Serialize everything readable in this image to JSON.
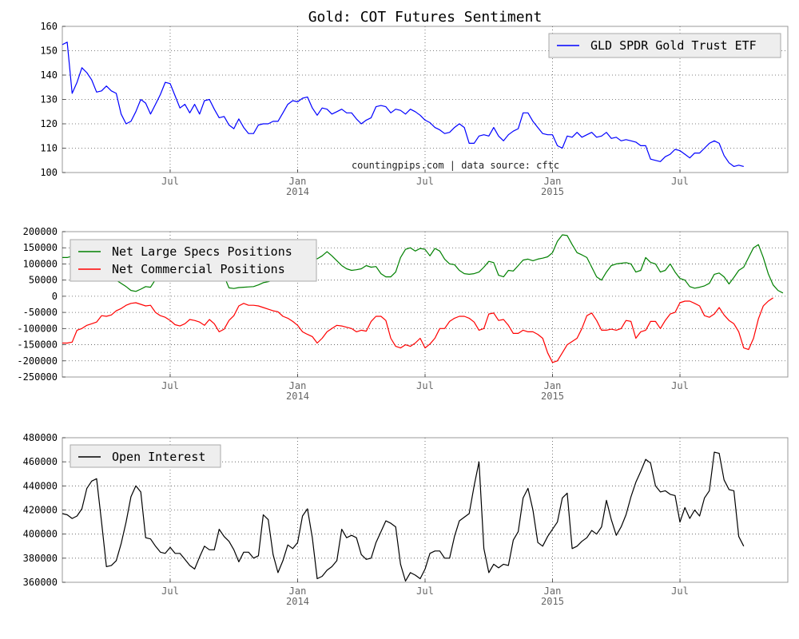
{
  "title": "Gold: COT Futures Sentiment",
  "watermark": "countingpips.com | data source: cftc",
  "colors": {
    "gld": "#0000ff",
    "specs": "#008000",
    "commercial": "#ff0000",
    "open_interest": "#000000",
    "grid": "#555555",
    "legend_bg": "#eeeeee"
  },
  "chart_data": [
    {
      "type": "line",
      "legend_position": "top-right",
      "grid": true,
      "ylim": [
        100,
        160
      ],
      "yticks": [
        100,
        110,
        120,
        130,
        140,
        150,
        160
      ],
      "xticks": [
        {
          "label": "Jul",
          "sub": "",
          "t": 22
        },
        {
          "label": "Jan",
          "sub": "2014",
          "t": 48
        },
        {
          "label": "Jul",
          "sub": "",
          "t": 74
        },
        {
          "label": "Jan",
          "sub": "2015",
          "t": 100
        },
        {
          "label": "Jul",
          "sub": "",
          "t": 126
        }
      ],
      "x_range": [
        0,
        148
      ],
      "series": [
        {
          "name": "GLD SPDR Gold Trust ETF",
          "color_key": "gld",
          "values": [
            152.5,
            153.5,
            132.5,
            137,
            143,
            141,
            138,
            133,
            133.5,
            135.5,
            133.5,
            132.5,
            124,
            120,
            121,
            125,
            130,
            128.5,
            124,
            128,
            132,
            137,
            136.5,
            131.5,
            126.5,
            128,
            124.5,
            128,
            124,
            129.5,
            130,
            126,
            122.5,
            123,
            119.5,
            118,
            122,
            118.5,
            116,
            116,
            119.5,
            120,
            120,
            121,
            121,
            124.5,
            128,
            129.5,
            129,
            130.5,
            131,
            126.5,
            123.5,
            126.5,
            126,
            124,
            125,
            126,
            124.5,
            124.5,
            122,
            120,
            121.5,
            122.5,
            127,
            127.5,
            127,
            124.5,
            126,
            125.5,
            124,
            126,
            125,
            123.5,
            121.5,
            120.5,
            118.5,
            117.5,
            116,
            116.5,
            118.5,
            120,
            118.5,
            112,
            112,
            115,
            115.5,
            115,
            118.5,
            115,
            113,
            115.5,
            117,
            118,
            124.5,
            124.5,
            121,
            118.5,
            116,
            115.5,
            115.5,
            111,
            110,
            115,
            114.5,
            116.5,
            114.5,
            115.5,
            116.5,
            114.5,
            115,
            116.5,
            114,
            114.5,
            113,
            113.5,
            113,
            112.5,
            111,
            111,
            105.5,
            105,
            104.5,
            106.5,
            107.5,
            109.5,
            109,
            107.5,
            106,
            108,
            108,
            110,
            112,
            113,
            112,
            107,
            104,
            102.5,
            103,
            102.5
          ]
        }
      ]
    },
    {
      "type": "line",
      "legend_position": "top-left",
      "grid": true,
      "ylim": [
        -250000,
        200000
      ],
      "yticks": [
        -250000,
        -200000,
        -150000,
        -100000,
        -50000,
        0,
        50000,
        100000,
        150000,
        200000
      ],
      "xticks": [
        {
          "label": "Jul",
          "sub": "",
          "t": 22
        },
        {
          "label": "Jan",
          "sub": "2014",
          "t": 48
        },
        {
          "label": "Jul",
          "sub": "",
          "t": 74
        },
        {
          "label": "Jan",
          "sub": "2015",
          "t": 100
        },
        {
          "label": "Jul",
          "sub": "",
          "t": 126
        }
      ],
      "x_range": [
        0,
        148
      ],
      "series": [
        {
          "name": "Net Large Specs Positions",
          "color_key": "specs",
          "values": [
            120000,
            120000,
            124000,
            105000,
            100000,
            95000,
            92000,
            90000,
            80000,
            75000,
            70000,
            50000,
            40000,
            30000,
            18000,
            15000,
            22000,
            30000,
            28000,
            52000,
            75000,
            80000,
            85000,
            88000,
            90000,
            92000,
            95000,
            96000,
            94000,
            95000,
            92000,
            88000,
            78000,
            62000,
            26000,
            24000,
            27000,
            28000,
            29000,
            30000,
            35000,
            42000,
            45000,
            50000,
            58000,
            70000,
            85000,
            100000,
            112000,
            118000,
            120000,
            118000,
            116000,
            125000,
            138000,
            125000,
            110000,
            95000,
            85000,
            80000,
            82000,
            85000,
            95000,
            90000,
            92000,
            70000,
            60000,
            60000,
            75000,
            120000,
            145000,
            150000,
            140000,
            148000,
            145000,
            125000,
            148000,
            140000,
            115000,
            100000,
            98000,
            80000,
            70000,
            68000,
            70000,
            75000,
            90000,
            108000,
            104000,
            65000,
            60000,
            80000,
            78000,
            95000,
            112000,
            115000,
            110000,
            115000,
            118000,
            122000,
            135000,
            170000,
            190000,
            188000,
            160000,
            135000,
            128000,
            120000,
            90000,
            60000,
            50000,
            75000,
            95000,
            100000,
            102000,
            104000,
            100000,
            75000,
            80000,
            120000,
            105000,
            100000,
            75000,
            80000,
            100000,
            75000,
            55000,
            50000,
            30000,
            25000,
            28000,
            32000,
            40000,
            68000,
            72000,
            60000,
            38000,
            58000,
            80000,
            90000,
            120000,
            150000,
            160000,
            120000,
            70000,
            35000,
            18000,
            10000
          ]
        },
        {
          "name": "Net Commercial Positions",
          "color_key": "commercial",
          "values": [
            -145000,
            -145000,
            -142000,
            -105000,
            -100000,
            -90000,
            -85000,
            -80000,
            -60000,
            -62000,
            -58000,
            -45000,
            -38000,
            -28000,
            -22000,
            -20000,
            -25000,
            -30000,
            -28000,
            -50000,
            -60000,
            -65000,
            -75000,
            -88000,
            -92000,
            -85000,
            -72000,
            -75000,
            -80000,
            -90000,
            -72000,
            -85000,
            -110000,
            -102000,
            -75000,
            -60000,
            -30000,
            -22000,
            -28000,
            -28000,
            -30000,
            -35000,
            -40000,
            -45000,
            -48000,
            -62000,
            -68000,
            -78000,
            -90000,
            -110000,
            -118000,
            -125000,
            -145000,
            -130000,
            -110000,
            -100000,
            -90000,
            -92000,
            -96000,
            -100000,
            -110000,
            -105000,
            -108000,
            -78000,
            -62000,
            -62000,
            -75000,
            -130000,
            -155000,
            -160000,
            -150000,
            -155000,
            -145000,
            -130000,
            -160000,
            -148000,
            -130000,
            -100000,
            -100000,
            -78000,
            -68000,
            -62000,
            -62000,
            -68000,
            -80000,
            -105000,
            -100000,
            -55000,
            -52000,
            -75000,
            -72000,
            -90000,
            -115000,
            -115000,
            -105000,
            -110000,
            -110000,
            -118000,
            -130000,
            -175000,
            -205000,
            -200000,
            -175000,
            -150000,
            -140000,
            -130000,
            -100000,
            -60000,
            -52000,
            -75000,
            -105000,
            -105000,
            -102000,
            -105000,
            -100000,
            -75000,
            -78000,
            -130000,
            -110000,
            -105000,
            -78000,
            -78000,
            -100000,
            -75000,
            -55000,
            -50000,
            -20000,
            -15000,
            -15000,
            -22000,
            -30000,
            -60000,
            -65000,
            -55000,
            -35000,
            -58000,
            -75000,
            -85000,
            -110000,
            -160000,
            -165000,
            -130000,
            -70000,
            -30000,
            -15000,
            -5000
          ]
        }
      ]
    },
    {
      "type": "line",
      "legend_position": "top-left",
      "grid": true,
      "ylim": [
        360000,
        480000
      ],
      "yticks": [
        360000,
        380000,
        400000,
        420000,
        440000,
        460000,
        480000
      ],
      "xticks": [
        {
          "label": "Jul",
          "sub": "",
          "t": 22
        },
        {
          "label": "Jan",
          "sub": "2014",
          "t": 48
        },
        {
          "label": "Jul",
          "sub": "",
          "t": 74
        },
        {
          "label": "Jan",
          "sub": "2015",
          "t": 100
        },
        {
          "label": "Jul",
          "sub": "",
          "t": 126
        }
      ],
      "x_range": [
        0,
        148
      ],
      "series": [
        {
          "name": "Open Interest",
          "color_key": "open_interest",
          "values": [
            417000,
            416000,
            413000,
            415000,
            421000,
            438000,
            444000,
            446000,
            410000,
            373000,
            374000,
            378000,
            392000,
            410000,
            431000,
            440000,
            435000,
            397000,
            396000,
            390000,
            385000,
            384000,
            389000,
            384000,
            384000,
            379000,
            374000,
            371000,
            381000,
            390000,
            387000,
            387000,
            404000,
            398000,
            394000,
            387000,
            377000,
            385000,
            385000,
            380000,
            382000,
            416000,
            412000,
            383000,
            368000,
            378000,
            391000,
            388000,
            393000,
            415000,
            421000,
            397000,
            363000,
            365000,
            370000,
            373000,
            378000,
            404000,
            397000,
            399000,
            397000,
            383000,
            379000,
            380000,
            393000,
            402000,
            411000,
            409000,
            406000,
            375000,
            361000,
            368000,
            366000,
            363000,
            371000,
            384000,
            386000,
            386000,
            380000,
            380000,
            398000,
            411000,
            414000,
            417000,
            440000,
            460000,
            388000,
            368000,
            375000,
            372000,
            375000,
            374000,
            395000,
            402000,
            430000,
            438000,
            420000,
            393000,
            390000,
            398000,
            404000,
            410000,
            430000,
            434000,
            388000,
            390000,
            394000,
            397000,
            403000,
            400000,
            406000,
            428000,
            412000,
            399000,
            406000,
            416000,
            431000,
            443000,
            452000,
            462000,
            459000,
            440000,
            435000,
            436000,
            433000,
            432000,
            410000,
            422000,
            413000,
            420000,
            415000,
            430000,
            436000,
            468000,
            467000,
            445000,
            437000,
            436000,
            398000,
            390000
          ]
        }
      ]
    }
  ]
}
